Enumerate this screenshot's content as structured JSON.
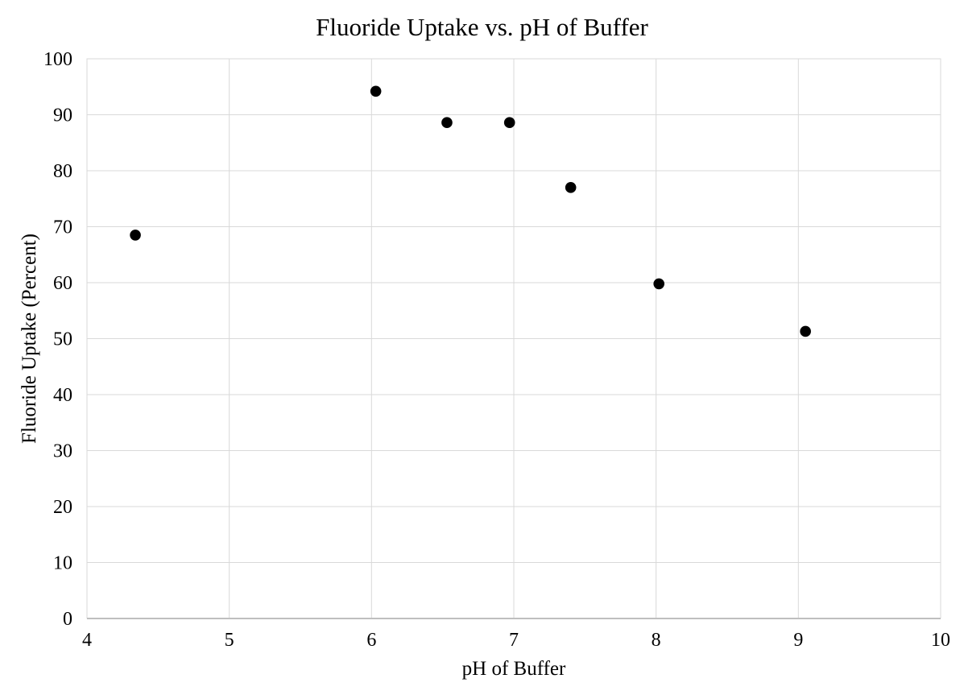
{
  "chart": {
    "title": "Fluoride Uptake vs. pH of Buffer"
  },
  "chart_data": {
    "type": "scatter",
    "title": "Fluoride Uptake vs. pH of Buffer",
    "xlabel": "pH of Buffer",
    "ylabel": "Fluoride Uptake (Percent)",
    "xlim": [
      4,
      10
    ],
    "ylim": [
      0,
      100
    ],
    "x_ticks": [
      4,
      5,
      6,
      7,
      8,
      9,
      10
    ],
    "y_ticks": [
      0,
      10,
      20,
      30,
      40,
      50,
      60,
      70,
      80,
      90,
      100
    ],
    "grid": true,
    "legend": false,
    "series": [
      {
        "name": "Fluoride Uptake",
        "marker": "circle",
        "color": "#000000",
        "points": [
          {
            "x": 4.34,
            "y": 68.5
          },
          {
            "x": 6.03,
            "y": 94.2
          },
          {
            "x": 6.53,
            "y": 88.6
          },
          {
            "x": 6.97,
            "y": 88.6
          },
          {
            "x": 7.4,
            "y": 77.0
          },
          {
            "x": 8.02,
            "y": 59.8
          },
          {
            "x": 9.05,
            "y": 51.3
          }
        ]
      }
    ],
    "colors": {
      "background": "#ffffff",
      "gridline": "#d9d9d9",
      "plot_border": "#d9d9d9",
      "axis_line": "#bfbfbf",
      "marker": "#000000",
      "text": "#000000"
    }
  }
}
